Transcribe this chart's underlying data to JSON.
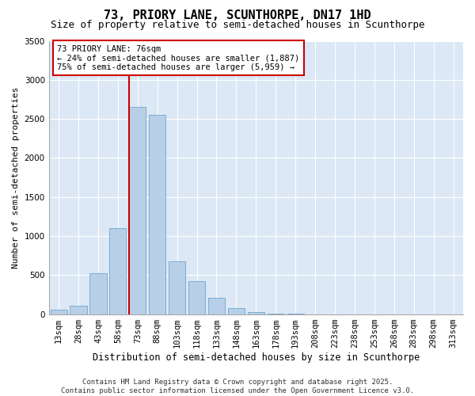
{
  "title": "73, PRIORY LANE, SCUNTHORPE, DN17 1HD",
  "subtitle": "Size of property relative to semi-detached houses in Scunthorpe",
  "xlabel": "Distribution of semi-detached houses by size in Scunthorpe",
  "ylabel": "Number of semi-detached properties",
  "categories": [
    "13sqm",
    "28sqm",
    "43sqm",
    "58sqm",
    "73sqm",
    "88sqm",
    "103sqm",
    "118sqm",
    "133sqm",
    "148sqm",
    "163sqm",
    "178sqm",
    "193sqm",
    "208sqm",
    "223sqm",
    "238sqm",
    "253sqm",
    "268sqm",
    "283sqm",
    "298sqm",
    "313sqm"
  ],
  "values": [
    55,
    105,
    525,
    1100,
    2650,
    2550,
    680,
    425,
    210,
    80,
    28,
    8,
    3,
    0,
    0,
    0,
    0,
    0,
    0,
    0,
    0
  ],
  "bar_color": "#b8cfe8",
  "bar_edge_color": "#7aadd4",
  "highlight_bar_index": 4,
  "highlight_line_color": "#cc0000",
  "annotation_text": "73 PRIORY LANE: 76sqm\n← 24% of semi-detached houses are smaller (1,887)\n75% of semi-detached houses are larger (5,959) →",
  "annotation_box_color": "#ffffff",
  "annotation_box_edge_color": "#cc0000",
  "ylim": [
    0,
    3500
  ],
  "yticks": [
    0,
    500,
    1000,
    1500,
    2000,
    2500,
    3000,
    3500
  ],
  "footnote": "Contains HM Land Registry data © Crown copyright and database right 2025.\nContains public sector information licensed under the Open Government Licence v3.0.",
  "background_color": "#ffffff",
  "plot_background_color": "#dce8f5",
  "grid_color": "#ffffff",
  "title_fontsize": 11,
  "subtitle_fontsize": 9,
  "axis_label_fontsize": 8.5,
  "ylabel_fontsize": 8,
  "tick_fontsize": 7.5,
  "annotation_fontsize": 7.5,
  "footnote_fontsize": 6.5
}
